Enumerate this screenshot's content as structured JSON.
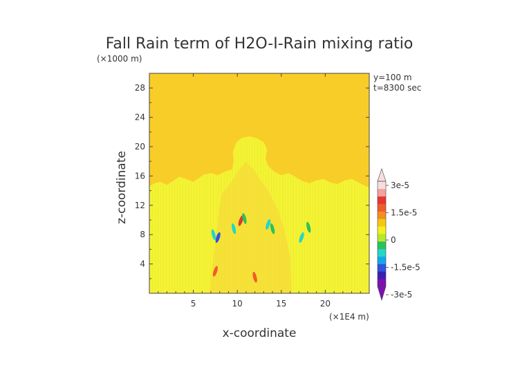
{
  "chart_data": {
    "type": "heatmap",
    "title": "Fall Rain term of H2O-I-Rain mixing ratio",
    "xlabel": "x-coordinate",
    "ylabel": "z-coordinate",
    "x_unit": "(×1E4 m)",
    "y_unit": "(×1000 m)",
    "annotations": [
      "y=100 m",
      "t=8300 sec"
    ],
    "xlim": [
      0,
      25
    ],
    "ylim": [
      0,
      30
    ],
    "x_ticks": [
      5,
      10,
      15,
      20
    ],
    "y_ticks": [
      4,
      8,
      12,
      16,
      20,
      24,
      28
    ],
    "background_value": 0,
    "colorbar": {
      "min": -3e-05,
      "max": 3e-05,
      "tick_labels": [
        "3e-5",
        "1.5e-5",
        "0",
        "-1.5e-5",
        "-3e-5"
      ],
      "tick_values": [
        3e-05,
        1.5e-05,
        0,
        -1.5e-05,
        -3e-05
      ],
      "colors": [
        "#7f0fb5",
        "#3a1fb3",
        "#2f54e0",
        "#13a9e8",
        "#25d6c6",
        "#2bc25a",
        "#b5ea28",
        "#f3f020",
        "#f7c614",
        "#f38f1b",
        "#f25b2a",
        "#e43532",
        "#f6a0a0",
        "#f7dede"
      ]
    },
    "regions": [
      {
        "label": "background",
        "value": 0,
        "color": "#f8cd28"
      },
      {
        "label": "cloud envelope",
        "value": 0,
        "color": "#f3f334",
        "x_range": [
          0,
          25
        ],
        "z_range": [
          0,
          16
        ]
      },
      {
        "label": "convective core",
        "value": 0,
        "color": "#f3f334",
        "x_range": [
          9.5,
          13.5
        ],
        "z_range": [
          16,
          21
        ]
      }
    ],
    "features": [
      {
        "color": "#25d6c6",
        "x": 7.3,
        "z": 8.0
      },
      {
        "color": "#2f54e0",
        "x": 7.8,
        "z": 7.6
      },
      {
        "color": "#25d6c6",
        "x": 9.6,
        "z": 8.8
      },
      {
        "color": "#e43532",
        "x": 10.4,
        "z": 9.9
      },
      {
        "color": "#2bc25a",
        "x": 10.8,
        "z": 10.2
      },
      {
        "color": "#25d6c6",
        "x": 13.5,
        "z": 9.4
      },
      {
        "color": "#2bc25a",
        "x": 14.0,
        "z": 8.8
      },
      {
        "color": "#25d6c6",
        "x": 17.3,
        "z": 7.6
      },
      {
        "color": "#2bc25a",
        "x": 18.1,
        "z": 9.0
      },
      {
        "color": "#f25b2a",
        "x": 7.5,
        "z": 3.0
      },
      {
        "color": "#f25b2a",
        "x": 12.0,
        "z": 2.2
      }
    ]
  }
}
